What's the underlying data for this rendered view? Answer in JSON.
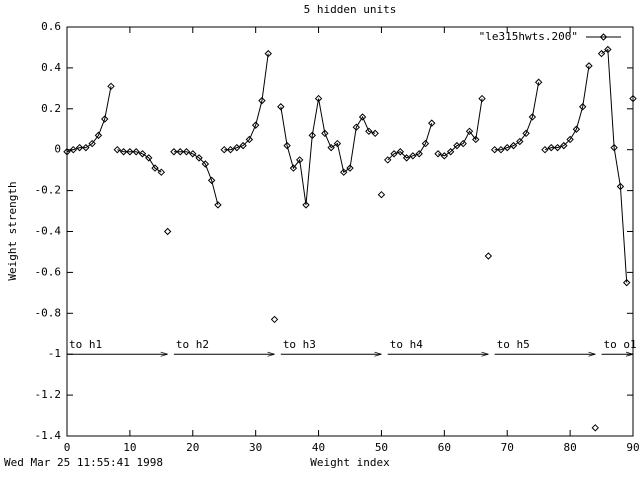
{
  "chart_data": {
    "type": "line",
    "title": "5 hidden units",
    "x_label": "Weight index",
    "y_label": "Weight strength",
    "timestamp": "Wed Mar 25 11:55:41 1998",
    "x": [
      0,
      1,
      2,
      3,
      4,
      5,
      6,
      7,
      null,
      8,
      9,
      10,
      11,
      12,
      13,
      14,
      15,
      null,
      16,
      null,
      17,
      18,
      19,
      20,
      21,
      22,
      23,
      24,
      null,
      25,
      26,
      27,
      28,
      29,
      30,
      31,
      32,
      null,
      33,
      null,
      34,
      35,
      36,
      37,
      38,
      39,
      40,
      41,
      42,
      43,
      44,
      45,
      46,
      47,
      48,
      49,
      null,
      50,
      null,
      51,
      52,
      53,
      54,
      55,
      56,
      57,
      58,
      null,
      59,
      60,
      61,
      62,
      63,
      64,
      65,
      66,
      null,
      67,
      null,
      68,
      69,
      70,
      71,
      72,
      73,
      74,
      75,
      null,
      76,
      77,
      78,
      79,
      80,
      81,
      82,
      83,
      null,
      84,
      null,
      85,
      86,
      87,
      88,
      89,
      null,
      90
    ],
    "series": [
      {
        "name": "\"le315hwts.200\"",
        "color": "#000000",
        "values": [
          -0.01,
          0,
          0.01,
          0.01,
          0.03,
          0.07,
          0.15,
          0.31,
          null,
          0,
          -0.01,
          -0.01,
          -0.01,
          -0.02,
          -0.04,
          -0.09,
          -0.11,
          null,
          -0.4,
          null,
          -0.01,
          -0.01,
          -0.01,
          -0.02,
          -0.04,
          -0.07,
          -0.15,
          -0.27,
          null,
          0,
          0,
          0.01,
          0.02,
          0.05,
          0.12,
          0.24,
          0.47,
          null,
          -0.83,
          null,
          0.21,
          0.02,
          -0.09,
          -0.05,
          -0.27,
          0.07,
          0.25,
          0.08,
          0.01,
          0.03,
          -0.11,
          -0.09,
          0.11,
          0.16,
          0.09,
          0.08,
          null,
          -0.22,
          null,
          -0.05,
          -0.02,
          -0.01,
          -0.04,
          -0.03,
          -0.02,
          0.03,
          0.13,
          null,
          -0.02,
          -0.03,
          -0.01,
          0.02,
          0.03,
          0.09,
          0.05,
          0.25,
          null,
          -0.52,
          null,
          0,
          0,
          0.01,
          0.02,
          0.04,
          0.08,
          0.16,
          0.33,
          null,
          0,
          0.01,
          0.01,
          0.02,
          0.05,
          0.1,
          0.21,
          0.41,
          null,
          -1.36,
          null,
          0.47,
          0.49,
          0.01,
          -0.18,
          -0.65,
          null,
          0.25
        ]
      }
    ],
    "annotations": [
      {
        "text": "to h1",
        "x": [
          0,
          16
        ],
        "y": -1
      },
      {
        "text": "to h2",
        "x": [
          17,
          33
        ],
        "y": -1
      },
      {
        "text": "to h3",
        "x": [
          34,
          50
        ],
        "y": -1
      },
      {
        "text": "to h4",
        "x": [
          51,
          67
        ],
        "y": -1
      },
      {
        "text": "to h5",
        "x": [
          68,
          84
        ],
        "y": -1
      },
      {
        "text": "to o1",
        "x": [
          85,
          90
        ],
        "y": -1
      }
    ],
    "xlim": [
      0,
      90
    ],
    "ylim": [
      -1.4,
      0.6
    ],
    "xticks": [
      0,
      10,
      20,
      30,
      40,
      50,
      60,
      70,
      80,
      90
    ],
    "yticks": [
      -1.4,
      -1.2,
      -1,
      -0.8,
      -0.6,
      -0.4,
      -0.2,
      0,
      0.2,
      0.4,
      0.6
    ],
    "legend": "top-right",
    "grid": false
  }
}
